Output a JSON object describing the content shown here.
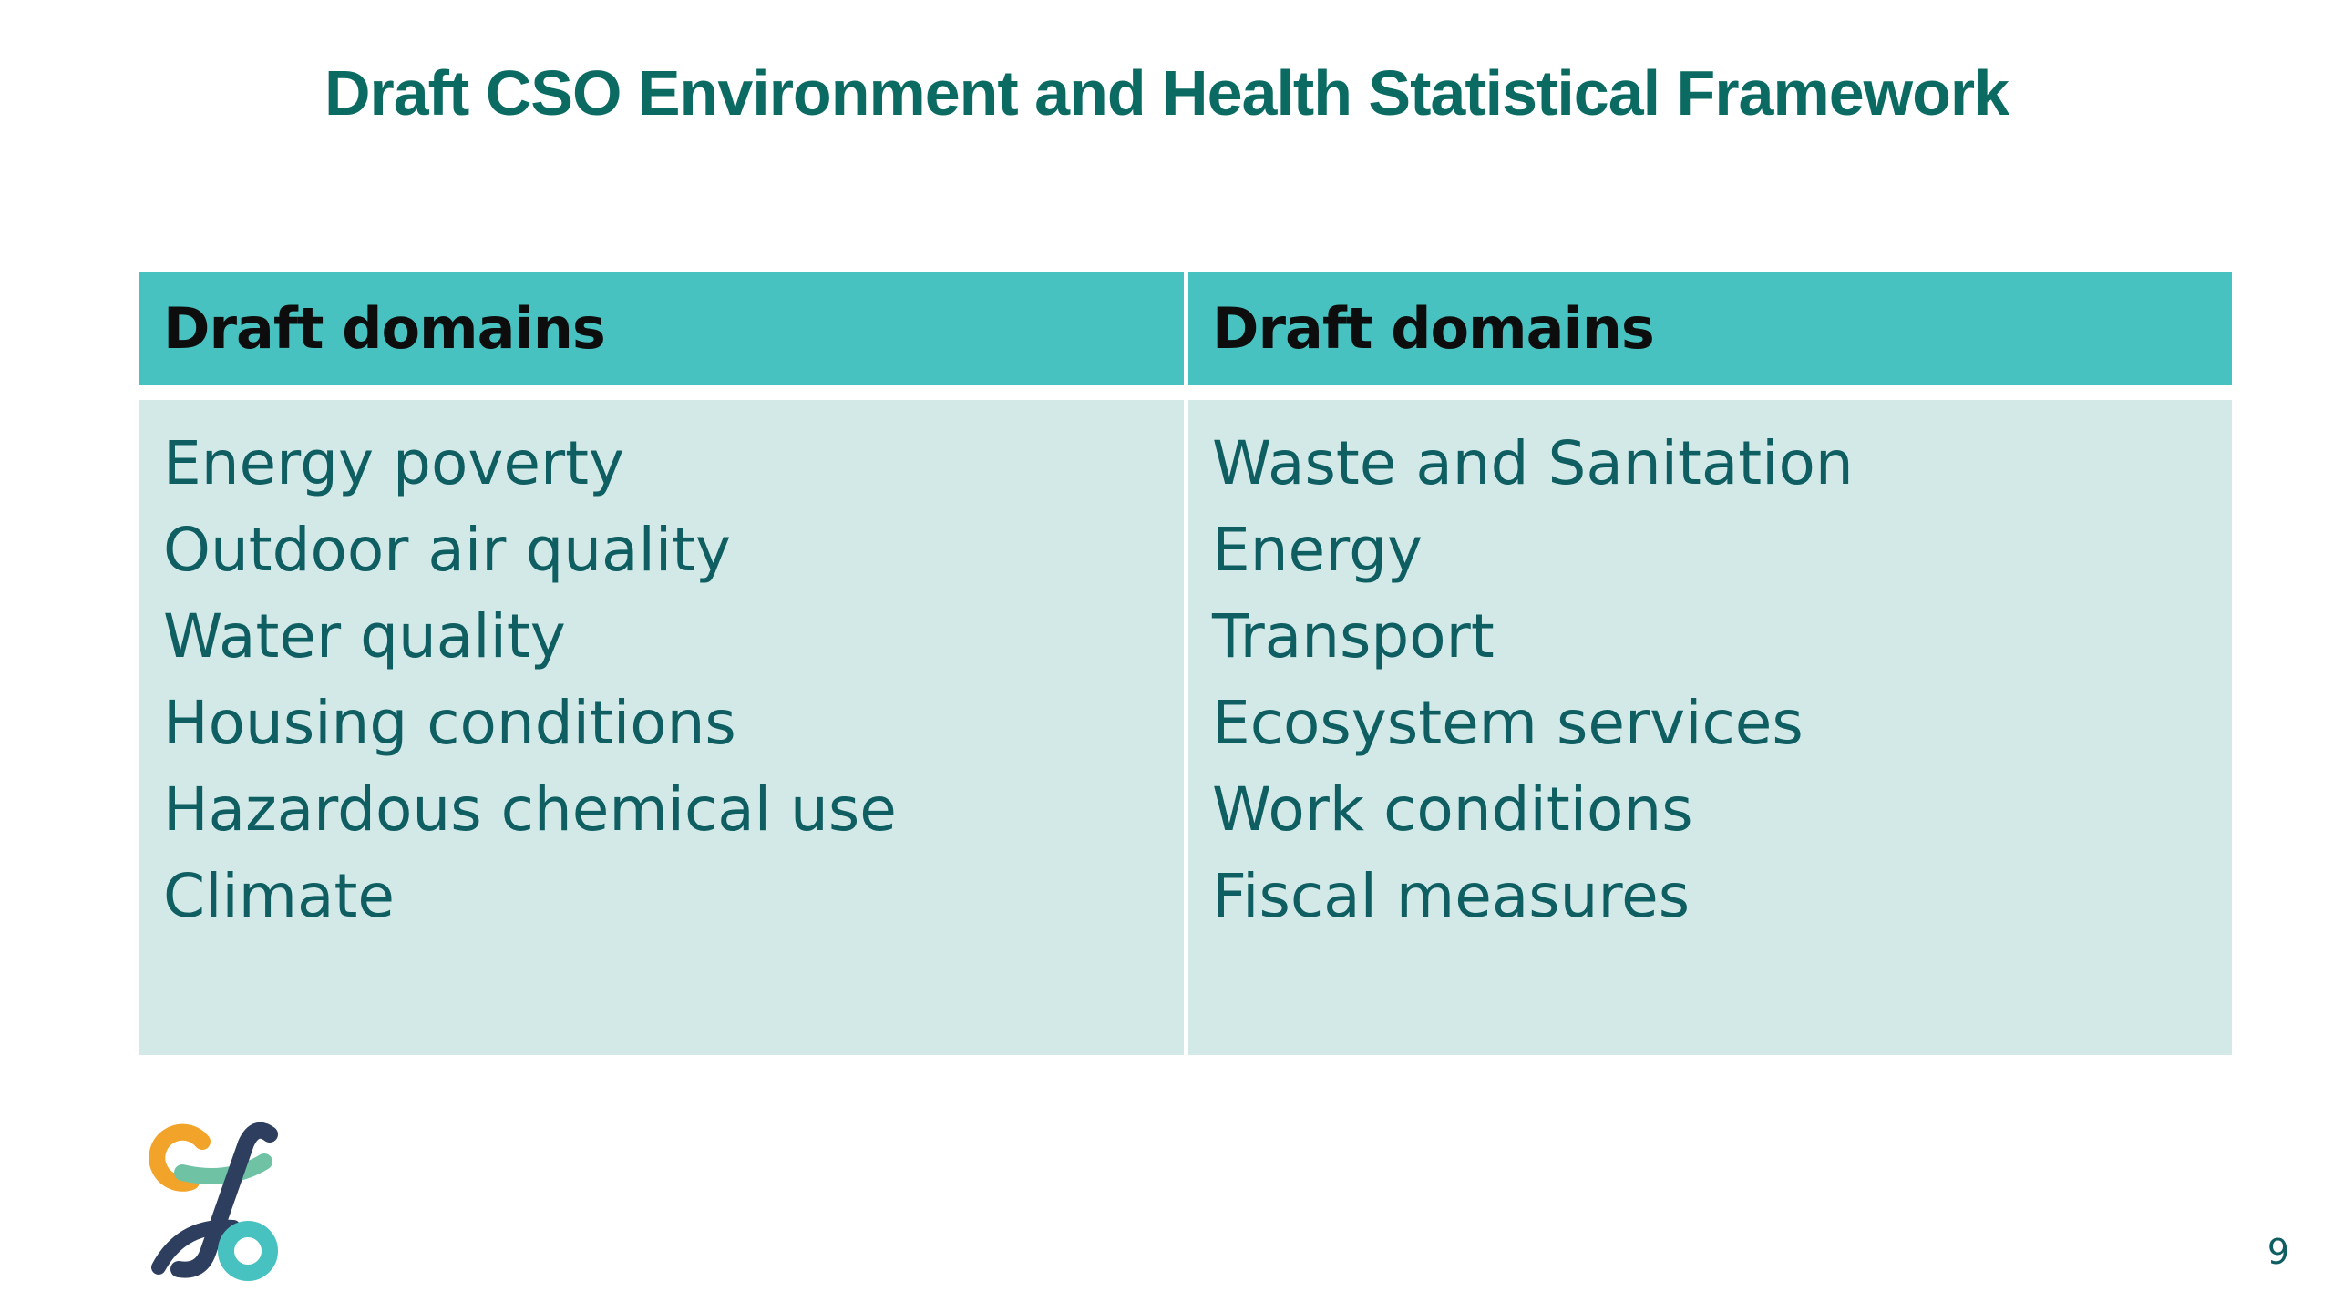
{
  "slide": {
    "title": "Draft CSO Environment and Health Statistical Framework",
    "page_number": "9",
    "colors": {
      "title": "#0b6b63",
      "header_bg": "#47c2c0",
      "body_bg": "#d2e9e8",
      "body_text": "#0e5e62",
      "logo_orange": "#f2a32a",
      "logo_teal": "#47c2c0",
      "logo_green": "#6fc3a4",
      "logo_navy": "#2d3e5e"
    },
    "logo_icon": "infinity-loop-logo-icon"
  },
  "table": {
    "headers": [
      "Draft domains",
      "Draft domains"
    ],
    "columns": [
      [
        "Energy poverty",
        "Outdoor air quality",
        "Water quality",
        "Housing conditions",
        "Hazardous chemical use",
        "Climate"
      ],
      [
        "Waste and Sanitation",
        "Energy",
        "Transport",
        "Ecosystem services",
        "Work conditions",
        "Fiscal measures"
      ]
    ]
  }
}
